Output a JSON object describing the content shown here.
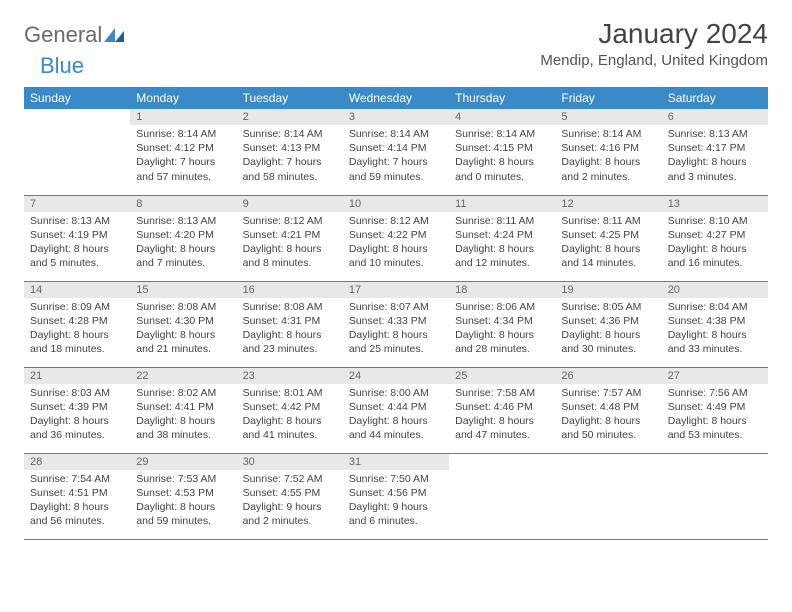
{
  "logo": {
    "text1": "General",
    "text2": "Blue"
  },
  "title": "January 2024",
  "location": "Mendip, England, United Kingdom",
  "colors": {
    "header_bg": "#3a8ac8",
    "header_text": "#ffffff",
    "daynum_bg": "#e8e8e8",
    "daynum_text": "#666666",
    "body_text": "#444444",
    "rule": "#3a8ac8",
    "page_bg": "#ffffff"
  },
  "day_headers": [
    "Sunday",
    "Monday",
    "Tuesday",
    "Wednesday",
    "Thursday",
    "Friday",
    "Saturday"
  ],
  "weeks": [
    [
      {
        "n": "",
        "sunrise": "",
        "sunset": "",
        "daylight1": "",
        "daylight2": ""
      },
      {
        "n": "1",
        "sunrise": "Sunrise: 8:14 AM",
        "sunset": "Sunset: 4:12 PM",
        "daylight1": "Daylight: 7 hours",
        "daylight2": "and 57 minutes."
      },
      {
        "n": "2",
        "sunrise": "Sunrise: 8:14 AM",
        "sunset": "Sunset: 4:13 PM",
        "daylight1": "Daylight: 7 hours",
        "daylight2": "and 58 minutes."
      },
      {
        "n": "3",
        "sunrise": "Sunrise: 8:14 AM",
        "sunset": "Sunset: 4:14 PM",
        "daylight1": "Daylight: 7 hours",
        "daylight2": "and 59 minutes."
      },
      {
        "n": "4",
        "sunrise": "Sunrise: 8:14 AM",
        "sunset": "Sunset: 4:15 PM",
        "daylight1": "Daylight: 8 hours",
        "daylight2": "and 0 minutes."
      },
      {
        "n": "5",
        "sunrise": "Sunrise: 8:14 AM",
        "sunset": "Sunset: 4:16 PM",
        "daylight1": "Daylight: 8 hours",
        "daylight2": "and 2 minutes."
      },
      {
        "n": "6",
        "sunrise": "Sunrise: 8:13 AM",
        "sunset": "Sunset: 4:17 PM",
        "daylight1": "Daylight: 8 hours",
        "daylight2": "and 3 minutes."
      }
    ],
    [
      {
        "n": "7",
        "sunrise": "Sunrise: 8:13 AM",
        "sunset": "Sunset: 4:19 PM",
        "daylight1": "Daylight: 8 hours",
        "daylight2": "and 5 minutes."
      },
      {
        "n": "8",
        "sunrise": "Sunrise: 8:13 AM",
        "sunset": "Sunset: 4:20 PM",
        "daylight1": "Daylight: 8 hours",
        "daylight2": "and 7 minutes."
      },
      {
        "n": "9",
        "sunrise": "Sunrise: 8:12 AM",
        "sunset": "Sunset: 4:21 PM",
        "daylight1": "Daylight: 8 hours",
        "daylight2": "and 8 minutes."
      },
      {
        "n": "10",
        "sunrise": "Sunrise: 8:12 AM",
        "sunset": "Sunset: 4:22 PM",
        "daylight1": "Daylight: 8 hours",
        "daylight2": "and 10 minutes."
      },
      {
        "n": "11",
        "sunrise": "Sunrise: 8:11 AM",
        "sunset": "Sunset: 4:24 PM",
        "daylight1": "Daylight: 8 hours",
        "daylight2": "and 12 minutes."
      },
      {
        "n": "12",
        "sunrise": "Sunrise: 8:11 AM",
        "sunset": "Sunset: 4:25 PM",
        "daylight1": "Daylight: 8 hours",
        "daylight2": "and 14 minutes."
      },
      {
        "n": "13",
        "sunrise": "Sunrise: 8:10 AM",
        "sunset": "Sunset: 4:27 PM",
        "daylight1": "Daylight: 8 hours",
        "daylight2": "and 16 minutes."
      }
    ],
    [
      {
        "n": "14",
        "sunrise": "Sunrise: 8:09 AM",
        "sunset": "Sunset: 4:28 PM",
        "daylight1": "Daylight: 8 hours",
        "daylight2": "and 18 minutes."
      },
      {
        "n": "15",
        "sunrise": "Sunrise: 8:08 AM",
        "sunset": "Sunset: 4:30 PM",
        "daylight1": "Daylight: 8 hours",
        "daylight2": "and 21 minutes."
      },
      {
        "n": "16",
        "sunrise": "Sunrise: 8:08 AM",
        "sunset": "Sunset: 4:31 PM",
        "daylight1": "Daylight: 8 hours",
        "daylight2": "and 23 minutes."
      },
      {
        "n": "17",
        "sunrise": "Sunrise: 8:07 AM",
        "sunset": "Sunset: 4:33 PM",
        "daylight1": "Daylight: 8 hours",
        "daylight2": "and 25 minutes."
      },
      {
        "n": "18",
        "sunrise": "Sunrise: 8:06 AM",
        "sunset": "Sunset: 4:34 PM",
        "daylight1": "Daylight: 8 hours",
        "daylight2": "and 28 minutes."
      },
      {
        "n": "19",
        "sunrise": "Sunrise: 8:05 AM",
        "sunset": "Sunset: 4:36 PM",
        "daylight1": "Daylight: 8 hours",
        "daylight2": "and 30 minutes."
      },
      {
        "n": "20",
        "sunrise": "Sunrise: 8:04 AM",
        "sunset": "Sunset: 4:38 PM",
        "daylight1": "Daylight: 8 hours",
        "daylight2": "and 33 minutes."
      }
    ],
    [
      {
        "n": "21",
        "sunrise": "Sunrise: 8:03 AM",
        "sunset": "Sunset: 4:39 PM",
        "daylight1": "Daylight: 8 hours",
        "daylight2": "and 36 minutes."
      },
      {
        "n": "22",
        "sunrise": "Sunrise: 8:02 AM",
        "sunset": "Sunset: 4:41 PM",
        "daylight1": "Daylight: 8 hours",
        "daylight2": "and 38 minutes."
      },
      {
        "n": "23",
        "sunrise": "Sunrise: 8:01 AM",
        "sunset": "Sunset: 4:42 PM",
        "daylight1": "Daylight: 8 hours",
        "daylight2": "and 41 minutes."
      },
      {
        "n": "24",
        "sunrise": "Sunrise: 8:00 AM",
        "sunset": "Sunset: 4:44 PM",
        "daylight1": "Daylight: 8 hours",
        "daylight2": "and 44 minutes."
      },
      {
        "n": "25",
        "sunrise": "Sunrise: 7:58 AM",
        "sunset": "Sunset: 4:46 PM",
        "daylight1": "Daylight: 8 hours",
        "daylight2": "and 47 minutes."
      },
      {
        "n": "26",
        "sunrise": "Sunrise: 7:57 AM",
        "sunset": "Sunset: 4:48 PM",
        "daylight1": "Daylight: 8 hours",
        "daylight2": "and 50 minutes."
      },
      {
        "n": "27",
        "sunrise": "Sunrise: 7:56 AM",
        "sunset": "Sunset: 4:49 PM",
        "daylight1": "Daylight: 8 hours",
        "daylight2": "and 53 minutes."
      }
    ],
    [
      {
        "n": "28",
        "sunrise": "Sunrise: 7:54 AM",
        "sunset": "Sunset: 4:51 PM",
        "daylight1": "Daylight: 8 hours",
        "daylight2": "and 56 minutes."
      },
      {
        "n": "29",
        "sunrise": "Sunrise: 7:53 AM",
        "sunset": "Sunset: 4:53 PM",
        "daylight1": "Daylight: 8 hours",
        "daylight2": "and 59 minutes."
      },
      {
        "n": "30",
        "sunrise": "Sunrise: 7:52 AM",
        "sunset": "Sunset: 4:55 PM",
        "daylight1": "Daylight: 9 hours",
        "daylight2": "and 2 minutes."
      },
      {
        "n": "31",
        "sunrise": "Sunrise: 7:50 AM",
        "sunset": "Sunset: 4:56 PM",
        "daylight1": "Daylight: 9 hours",
        "daylight2": "and 6 minutes."
      },
      {
        "n": "",
        "sunrise": "",
        "sunset": "",
        "daylight1": "",
        "daylight2": ""
      },
      {
        "n": "",
        "sunrise": "",
        "sunset": "",
        "daylight1": "",
        "daylight2": ""
      },
      {
        "n": "",
        "sunrise": "",
        "sunset": "",
        "daylight1": "",
        "daylight2": ""
      }
    ]
  ]
}
